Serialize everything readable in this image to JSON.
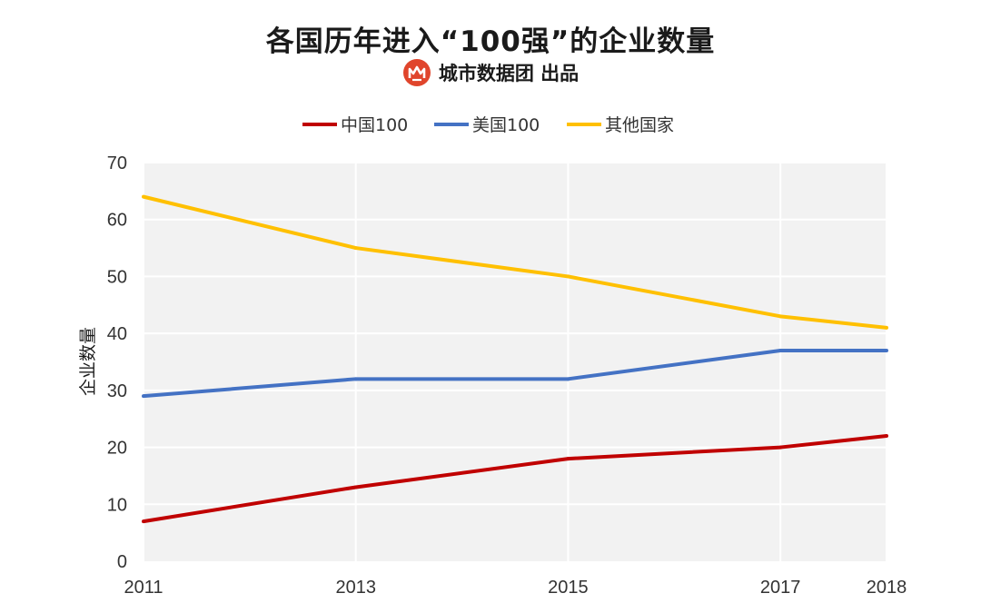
{
  "header": {
    "title": "各国历年进入“100强”的企业数量",
    "byline": "城市数据团  出品",
    "logo_icon": "city-data-group-logo",
    "logo_color": "#e0452c"
  },
  "chart_data": {
    "type": "line",
    "title": "各国历年进入“100强”的企业数量",
    "x": [
      2011,
      2013,
      2015,
      2017,
      2018
    ],
    "x_tick_labels": [
      "2011",
      "2013",
      "2015",
      "2017",
      "2018"
    ],
    "xlim": [
      2011,
      2018
    ],
    "ylabel": "企业数量",
    "ylim": [
      0,
      70
    ],
    "y_ticks": [
      0,
      10,
      20,
      30,
      40,
      50,
      60,
      70
    ],
    "y_tick_labels": [
      "0",
      "10",
      "20",
      "30",
      "40",
      "50",
      "60",
      "70"
    ],
    "grid": true,
    "plot_background": "#f2f2f2",
    "legend_position": "top-center",
    "series": [
      {
        "name": "中国100",
        "color": "#c00000",
        "values": [
          7,
          13,
          18,
          20,
          22
        ]
      },
      {
        "name": "美国100",
        "color": "#4472c4",
        "values": [
          29,
          32,
          32,
          37,
          37
        ]
      },
      {
        "name": "其他国家",
        "color": "#ffc000",
        "values": [
          64,
          55,
          50,
          43,
          41
        ]
      }
    ]
  }
}
